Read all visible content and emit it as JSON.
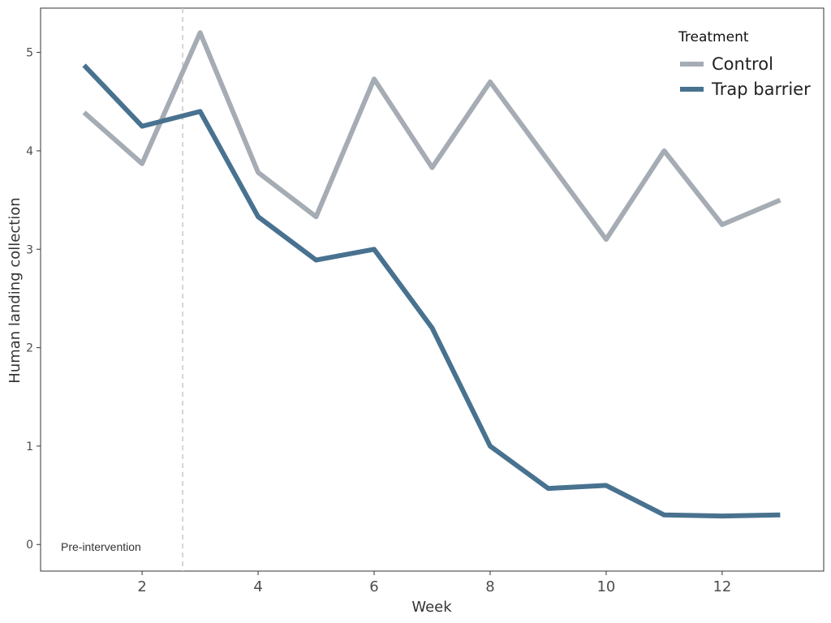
{
  "chart_data": {
    "type": "line",
    "title": "",
    "xlabel": "Week",
    "ylabel": "Human landing collection",
    "x": [
      1,
      2,
      3,
      4,
      5,
      6,
      7,
      8,
      9,
      10,
      11,
      12,
      13
    ],
    "xlim": [
      0.25,
      13.75
    ],
    "ylim": [
      -0.27,
      5.45
    ],
    "xticks": [
      2,
      4,
      6,
      8,
      10,
      12
    ],
    "yticks": [
      0,
      1,
      2,
      3,
      4,
      5
    ],
    "grid": false,
    "legend": {
      "title": "Treatment",
      "position": "top-right"
    },
    "series": [
      {
        "name": "Control",
        "color": "#a5acb4",
        "values": [
          4.39,
          3.87,
          5.2,
          3.78,
          3.33,
          4.73,
          3.83,
          4.7,
          3.9,
          3.1,
          4.0,
          3.25,
          3.5
        ]
      },
      {
        "name": "Trap barrier",
        "color": "#48728f",
        "values": [
          4.87,
          4.25,
          4.4,
          3.33,
          2.89,
          3.0,
          2.2,
          1.0,
          0.57,
          0.6,
          0.3,
          0.29,
          0.3
        ]
      }
    ],
    "annotations": [
      {
        "text": "Pre-intervention",
        "type": "vline",
        "x": 2.7,
        "color": "#cccccc"
      }
    ]
  }
}
